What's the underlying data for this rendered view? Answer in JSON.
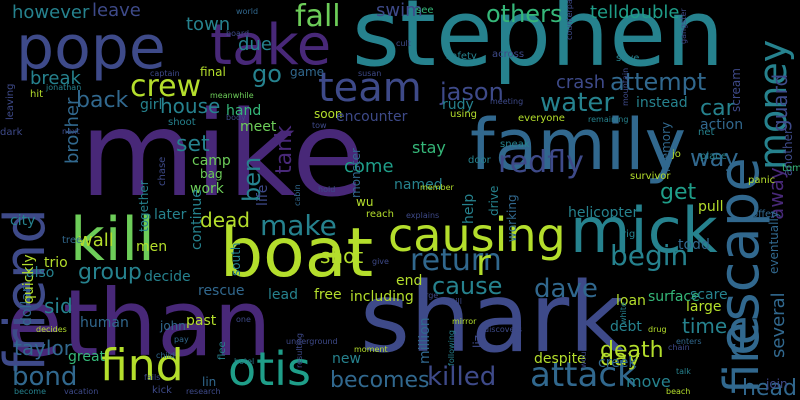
{
  "cloud": {
    "background": "#000000",
    "palette": [
      "#440154",
      "#482878",
      "#3e4a89",
      "#31688e",
      "#26828e",
      "#1f9e89",
      "#35b779",
      "#6dcd59",
      "#b4de2c",
      "#fde725"
    ],
    "words": [
      {
        "text": "mike",
        "color": "#482878"
      },
      {
        "text": "stephen",
        "color": "#26828e"
      },
      {
        "text": "shark",
        "color": "#3e4a89"
      },
      {
        "text": "ethan",
        "color": "#482878"
      },
      {
        "text": "family",
        "color": "#31688e"
      },
      {
        "text": "boat",
        "color": "#b4de2c"
      },
      {
        "text": "pope",
        "color": "#3e4a89"
      },
      {
        "text": "take",
        "color": "#482878"
      },
      {
        "text": "mick",
        "color": "#26828e"
      },
      {
        "text": "friend",
        "color": "#3e4a89"
      },
      {
        "text": "escape",
        "color": "#31688e"
      },
      {
        "text": "kill",
        "color": "#6dcd59"
      },
      {
        "text": "causing",
        "color": "#b4de2c"
      },
      {
        "text": "fire",
        "color": "#31688e"
      },
      {
        "text": "otis",
        "color": "#1f9e89"
      },
      {
        "text": "find",
        "color": "#b4de2c"
      },
      {
        "text": "team",
        "color": "#3e4a89"
      },
      {
        "text": "money",
        "color": "#26828e"
      },
      {
        "text": "killed",
        "color": "#3e4a89"
      },
      {
        "text": "attack",
        "color": "#31688e"
      },
      {
        "text": "redfly",
        "color": "#3e4a89"
      },
      {
        "text": "return",
        "color": "#31688e"
      },
      {
        "text": "make",
        "color": "#26828e"
      },
      {
        "text": "fall",
        "color": "#6dcd59"
      },
      {
        "text": "crew",
        "color": "#b4de2c"
      },
      {
        "text": "water",
        "color": "#26828e"
      },
      {
        "text": "jason",
        "color": "#3e4a89"
      },
      {
        "text": "dave",
        "color": "#31688e"
      },
      {
        "text": "begin",
        "color": "#26828e"
      },
      {
        "text": "bond",
        "color": "#31688e"
      },
      {
        "text": "tank",
        "color": "#482878"
      },
      {
        "text": "go",
        "color": "#26828e"
      },
      {
        "text": "cause",
        "color": "#26828e"
      },
      {
        "text": "becomes",
        "color": "#31688e"
      },
      {
        "text": "others",
        "color": "#35b779"
      },
      {
        "text": "back",
        "color": "#31688e"
      },
      {
        "text": "attempt",
        "color": "#31688e"
      },
      {
        "text": "ben",
        "color": "#26828e"
      },
      {
        "text": "guard",
        "color": "#3e4a89"
      },
      {
        "text": "group",
        "color": "#26828e"
      },
      {
        "text": "swim",
        "color": "#3e4a89"
      },
      {
        "text": "death",
        "color": "#b4de2c"
      },
      {
        "text": "telldouble",
        "color": "#1f9e89"
      },
      {
        "text": "car",
        "color": "#26828e"
      },
      {
        "text": "crash",
        "color": "#3e4a89"
      },
      {
        "text": "get",
        "color": "#1f9e89"
      },
      {
        "text": "set",
        "color": "#26828e"
      },
      {
        "text": "day",
        "color": "#b4de2c"
      },
      {
        "text": "r",
        "color": "#b4de2c"
      },
      {
        "text": "time",
        "color": "#26828e"
      },
      {
        "text": "shot",
        "color": "#b4de2c"
      },
      {
        "text": "house",
        "color": "#26828e"
      },
      {
        "text": "sid",
        "color": "#26828e"
      },
      {
        "text": "taylor",
        "color": "#31688e"
      },
      {
        "text": "away",
        "color": "#482878"
      },
      {
        "text": "several",
        "color": "#31688e"
      },
      {
        "text": "head",
        "color": "#31688e"
      },
      {
        "text": "dead",
        "color": "#b4de2c"
      },
      {
        "text": "town",
        "color": "#26828e"
      },
      {
        "text": "come",
        "color": "#1f9e89"
      },
      {
        "text": "however",
        "color": "#26828e"
      },
      {
        "text": "leave",
        "color": "#3e4a89"
      },
      {
        "text": "due",
        "color": "#26828e"
      },
      {
        "text": "break",
        "color": "#26828e"
      },
      {
        "text": "way",
        "color": "#31688e"
      },
      {
        "text": "wall",
        "color": "#b4de2c"
      },
      {
        "text": "brother",
        "color": "#31688e"
      },
      {
        "text": "girl",
        "color": "#26828e"
      },
      {
        "text": "instead",
        "color": "#26828e"
      },
      {
        "text": "move",
        "color": "#26828e"
      },
      {
        "text": "stay",
        "color": "#35b779"
      },
      {
        "text": "named",
        "color": "#26828e"
      },
      {
        "text": "help",
        "color": "#26828e"
      },
      {
        "text": "free",
        "color": "#b4de2c"
      },
      {
        "text": "end",
        "color": "#b4de2c"
      },
      {
        "text": "pull",
        "color": "#b4de2c"
      },
      {
        "text": "large",
        "color": "#b4de2c"
      },
      {
        "text": "hand",
        "color": "#35b779"
      },
      {
        "text": "meet",
        "color": "#6dcd59"
      },
      {
        "text": "game",
        "color": "#31688e"
      },
      {
        "text": "final",
        "color": "#b4de2c"
      },
      {
        "text": "soon",
        "color": "#b4de2c"
      },
      {
        "text": "rudy",
        "color": "#26828e"
      },
      {
        "text": "action",
        "color": "#31688e"
      },
      {
        "text": "todd",
        "color": "#31688e"
      },
      {
        "text": "including",
        "color": "#b4de2c"
      },
      {
        "text": "lead",
        "color": "#26828e"
      },
      {
        "text": "rescue",
        "color": "#31688e"
      },
      {
        "text": "past",
        "color": "#b4de2c"
      },
      {
        "text": "human",
        "color": "#31688e"
      },
      {
        "text": "great",
        "color": "#35b779"
      },
      {
        "text": "men",
        "color": "#b4de2c"
      },
      {
        "text": "camp",
        "color": "#6dcd59"
      },
      {
        "text": "work",
        "color": "#6dcd59"
      },
      {
        "text": "bag",
        "color": "#6dcd59"
      },
      {
        "text": "john",
        "color": "#31688e"
      },
      {
        "text": "surface",
        "color": "#35b779"
      },
      {
        "text": "creek",
        "color": "#31688e"
      },
      {
        "text": "debt",
        "color": "#26828e"
      },
      {
        "text": "loan",
        "color": "#b4de2c"
      },
      {
        "text": "scare",
        "color": "#26828e"
      },
      {
        "text": "despite",
        "color": "#b4de2c"
      },
      {
        "text": "million",
        "color": "#31688e"
      },
      {
        "text": "encounter",
        "color": "#3e4a89"
      },
      {
        "text": "helicopter",
        "color": "#26828e"
      },
      {
        "text": "city",
        "color": "#26828e"
      },
      {
        "text": "also",
        "color": "#26828e"
      },
      {
        "text": "trio",
        "color": "#b4de2c"
      },
      {
        "text": "decide",
        "color": "#26828e"
      },
      {
        "text": "lin",
        "color": "#31688e"
      },
      {
        "text": "new",
        "color": "#26828e"
      },
      {
        "text": "join",
        "color": "#3e4a89"
      },
      {
        "text": "world",
        "color": "#31688e"
      },
      {
        "text": "see",
        "color": "#35b779"
      },
      {
        "text": "counterpart",
        "color": "#3e4a89"
      },
      {
        "text": "save",
        "color": "#26828e"
      },
      {
        "text": "gangster",
        "color": "#3e4a89"
      },
      {
        "text": "scream",
        "color": "#3e4a89"
      },
      {
        "text": "mountain",
        "color": "#3e4a89"
      },
      {
        "text": "susan",
        "color": "#3e4a89"
      },
      {
        "text": "safety",
        "color": "#26828e"
      },
      {
        "text": "across",
        "color": "#3e4a89"
      },
      {
        "text": "board",
        "color": "#3e4a89"
      },
      {
        "text": "cult",
        "color": "#3e4a89"
      },
      {
        "text": "leaving",
        "color": "#3e4a89"
      },
      {
        "text": "hit",
        "color": "#b4de2c"
      },
      {
        "text": "jonathan",
        "color": "#26828e"
      },
      {
        "text": "captain",
        "color": "#3e4a89"
      },
      {
        "text": "meanwhile",
        "color": "#6dcd59"
      },
      {
        "text": "shoot",
        "color": "#26828e"
      },
      {
        "text": "tow",
        "color": "#3e4a89"
      },
      {
        "text": "meeting",
        "color": "#3e4a89"
      },
      {
        "text": "using",
        "color": "#b4de2c"
      },
      {
        "text": "remaining",
        "color": "#26828e"
      },
      {
        "text": "everyone",
        "color": "#b4de2c"
      },
      {
        "text": "memory",
        "color": "#31688e"
      },
      {
        "text": "net",
        "color": "#26828e"
      },
      {
        "text": "jo",
        "color": "#b4de2c"
      },
      {
        "text": "place",
        "color": "#26828e"
      },
      {
        "text": "another",
        "color": "#3e4a89"
      },
      {
        "text": "tom",
        "color": "#35b779"
      },
      {
        "text": "eventually",
        "color": "#31688e"
      },
      {
        "text": "panic",
        "color": "#b4de2c"
      },
      {
        "text": "offer",
        "color": "#31688e"
      },
      {
        "text": "survivor",
        "color": "#b4de2c"
      },
      {
        "text": "next",
        "color": "#3e4a89"
      },
      {
        "text": "dark",
        "color": "#3e4a89"
      },
      {
        "text": "body",
        "color": "#3e4a89"
      },
      {
        "text": "chase",
        "color": "#3e4a89"
      },
      {
        "text": "monster",
        "color": "#31688e"
      },
      {
        "text": "sneak",
        "color": "#26828e"
      },
      {
        "text": "door",
        "color": "#26828e"
      },
      {
        "text": "member",
        "color": "#b4de2c"
      },
      {
        "text": "drive",
        "color": "#26828e"
      },
      {
        "text": "working",
        "color": "#31688e"
      },
      {
        "text": "wu",
        "color": "#b4de2c"
      },
      {
        "text": "hold",
        "color": "#3e4a89"
      },
      {
        "text": "cabin",
        "color": "#31688e"
      },
      {
        "text": "reach",
        "color": "#b4de2c"
      },
      {
        "text": "explains",
        "color": "#3e4a89"
      },
      {
        "text": "rig",
        "color": "#26828e"
      },
      {
        "text": "life",
        "color": "#3e4a89"
      },
      {
        "text": "later",
        "color": "#26828e"
      },
      {
        "text": "together",
        "color": "#26828e"
      },
      {
        "text": "continue",
        "color": "#26828e"
      },
      {
        "text": "tree",
        "color": "#31688e"
      },
      {
        "text": "dollar",
        "color": "#31688e"
      },
      {
        "text": "quickly",
        "color": "#b4de2c"
      },
      {
        "text": "decides",
        "color": "#b4de2c"
      },
      {
        "text": "become",
        "color": "#26828e"
      },
      {
        "text": "vacation",
        "color": "#3e4a89"
      },
      {
        "text": "kick",
        "color": "#3e4a89"
      },
      {
        "text": "research",
        "color": "#3e4a89"
      },
      {
        "text": "hotel",
        "color": "#26828e"
      },
      {
        "text": "child",
        "color": "#31688e"
      },
      {
        "text": "pay",
        "color": "#31688e"
      },
      {
        "text": "one",
        "color": "#3e4a89"
      },
      {
        "text": "flee",
        "color": "#26828e"
      },
      {
        "text": "fails",
        "color": "#3e4a89"
      },
      {
        "text": "south",
        "color": "#26828e"
      },
      {
        "text": "underground",
        "color": "#3e4a89"
      },
      {
        "text": "resulting",
        "color": "#3e4a89"
      },
      {
        "text": "moment",
        "color": "#b4de2c"
      },
      {
        "text": "give",
        "color": "#3e4a89"
      },
      {
        "text": "urge",
        "color": "#3e4a89"
      },
      {
        "text": "still",
        "color": "#3e4a89"
      },
      {
        "text": "liz",
        "color": "#3e4a89"
      },
      {
        "text": "mirror",
        "color": "#b4de2c"
      },
      {
        "text": "following",
        "color": "#26828e"
      },
      {
        "text": "discovers",
        "color": "#3e4a89"
      },
      {
        "text": "drug",
        "color": "#b4de2c"
      },
      {
        "text": "white",
        "color": "#26828e"
      },
      {
        "text": "wound",
        "color": "#3e4a89"
      },
      {
        "text": "enters",
        "color": "#31688e"
      },
      {
        "text": "chain",
        "color": "#3e4a89"
      },
      {
        "text": "talk",
        "color": "#26828e"
      },
      {
        "text": "beach",
        "color": "#b4de2c"
      }
    ]
  }
}
